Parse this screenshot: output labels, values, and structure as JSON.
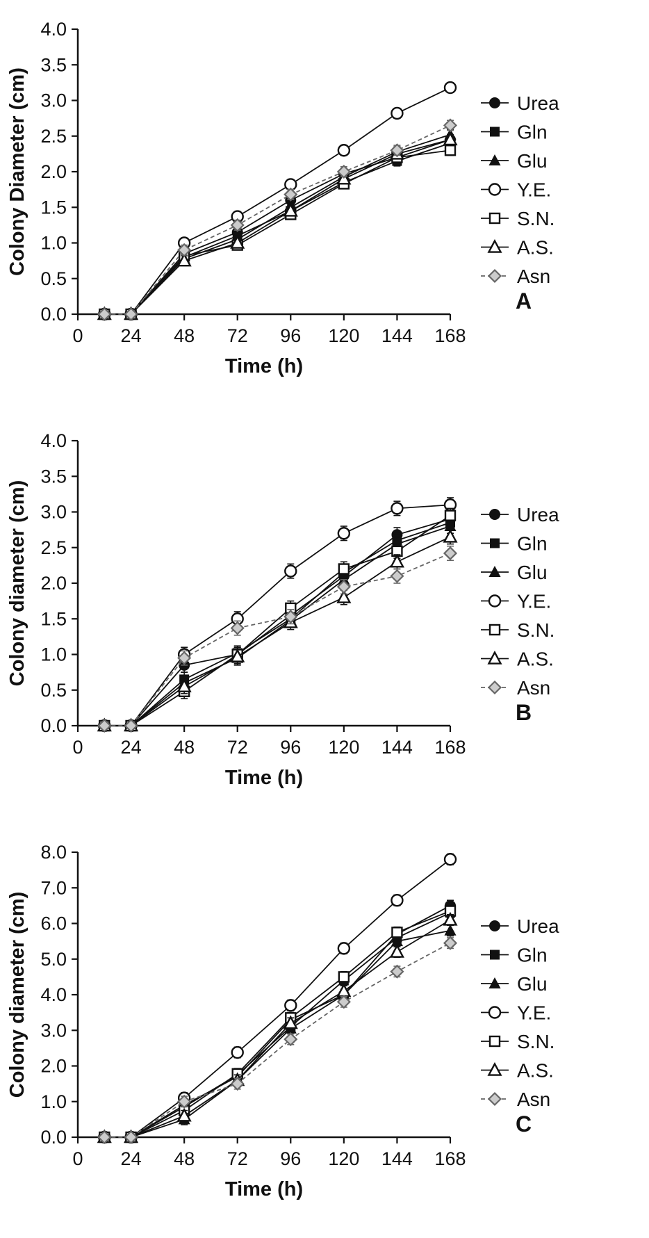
{
  "figure_title": "",
  "legend": {
    "entries": [
      "Urea",
      "Gln",
      "Glu",
      "Y.E.",
      "S.N.",
      "A.S.",
      "Asn"
    ]
  },
  "colors": {
    "series_black": "#111111",
    "asn_gray": "#666666",
    "asn_fill": "#cccccc",
    "background": "#ffffff"
  },
  "chart_data": [
    {
      "type": "line",
      "panel": "A",
      "title": "",
      "xlabel": "Time (h)",
      "ylabel": "Colony Diameter (cm)",
      "x": [
        12,
        24,
        48,
        72,
        96,
        120,
        144,
        168
      ],
      "xticks": [
        0,
        24,
        48,
        72,
        96,
        120,
        144,
        168
      ],
      "xlim": [
        0,
        168
      ],
      "ylim": [
        0,
        4.0
      ],
      "ytick_step": 0.5,
      "error": 0.07,
      "legend_position": "right",
      "grid": false,
      "series": [
        {
          "name": "Urea",
          "marker": "circle-filled",
          "dashed": false,
          "values": [
            0,
            0,
            0.85,
            1.15,
            1.6,
            1.97,
            2.2,
            2.45
          ]
        },
        {
          "name": "Gln",
          "marker": "square-filled",
          "dashed": false,
          "values": [
            0,
            0,
            0.8,
            1.1,
            1.45,
            1.85,
            2.15,
            2.4
          ]
        },
        {
          "name": "Glu",
          "marker": "triangle-filled",
          "dashed": false,
          "values": [
            0,
            0,
            0.78,
            1.05,
            1.5,
            1.93,
            2.28,
            2.52
          ]
        },
        {
          "name": "Y.E.",
          "marker": "circle-open",
          "dashed": false,
          "values": [
            0,
            0,
            1.0,
            1.37,
            1.82,
            2.3,
            2.82,
            3.18
          ]
        },
        {
          "name": "S.N.",
          "marker": "square-open",
          "dashed": false,
          "values": [
            0,
            0,
            0.82,
            0.97,
            1.4,
            1.83,
            2.2,
            2.3
          ]
        },
        {
          "name": "A.S.",
          "marker": "triangle-open",
          "dashed": false,
          "values": [
            0,
            0,
            0.75,
            1.0,
            1.45,
            1.9,
            2.25,
            2.45
          ]
        },
        {
          "name": "Asn",
          "marker": "diamond-open",
          "dashed": true,
          "values": [
            0,
            0,
            0.9,
            1.25,
            1.68,
            2.0,
            2.3,
            2.65
          ]
        }
      ]
    },
    {
      "type": "line",
      "panel": "B",
      "title": "",
      "xlabel": "Time (h)",
      "ylabel": "Colony diameter (cm)",
      "x": [
        12,
        24,
        48,
        72,
        96,
        120,
        144,
        168
      ],
      "xticks": [
        0,
        24,
        48,
        72,
        96,
        120,
        144,
        168
      ],
      "xlim": [
        0,
        168
      ],
      "ylim": [
        0,
        4.0
      ],
      "ytick_step": 0.5,
      "error": 0.1,
      "legend_position": "right",
      "grid": false,
      "series": [
        {
          "name": "Urea",
          "marker": "circle-filled",
          "dashed": false,
          "values": [
            0,
            0,
            0.85,
            1.0,
            1.55,
            2.1,
            2.68,
            2.9
          ]
        },
        {
          "name": "Gln",
          "marker": "square-filled",
          "dashed": false,
          "values": [
            0,
            0,
            0.65,
            1.02,
            1.5,
            2.15,
            2.6,
            2.85
          ]
        },
        {
          "name": "Glu",
          "marker": "triangle-filled",
          "dashed": false,
          "values": [
            0,
            0,
            0.6,
            0.95,
            1.48,
            2.05,
            2.55,
            2.8
          ]
        },
        {
          "name": "Y.E.",
          "marker": "circle-open",
          "dashed": false,
          "values": [
            0,
            0,
            1.0,
            1.5,
            2.17,
            2.7,
            3.05,
            3.1
          ]
        },
        {
          "name": "S.N.",
          "marker": "square-open",
          "dashed": false,
          "values": [
            0,
            0,
            0.48,
            1.0,
            1.65,
            2.2,
            2.45,
            2.95
          ]
        },
        {
          "name": "A.S.",
          "marker": "triangle-open",
          "dashed": false,
          "values": [
            0,
            0,
            0.55,
            0.97,
            1.45,
            1.8,
            2.3,
            2.65
          ]
        },
        {
          "name": "Asn",
          "marker": "diamond-open",
          "dashed": true,
          "values": [
            0,
            0,
            0.95,
            1.37,
            1.53,
            1.95,
            2.1,
            2.42
          ]
        }
      ]
    },
    {
      "type": "line",
      "panel": "C",
      "title": "",
      "xlabel": "Time (h)",
      "ylabel": "Colony diameter (cm)",
      "x": [
        12,
        24,
        48,
        72,
        96,
        120,
        144,
        168
      ],
      "xticks": [
        0,
        24,
        48,
        72,
        96,
        120,
        144,
        168
      ],
      "xlim": [
        0,
        168
      ],
      "ylim": [
        0,
        8.0
      ],
      "ytick_step": 1.0,
      "error": 0.15,
      "legend_position": "right",
      "grid": false,
      "series": [
        {
          "name": "Urea",
          "marker": "circle-filled",
          "dashed": false,
          "values": [
            0,
            0,
            0.9,
            1.7,
            3.3,
            4.0,
            5.7,
            6.5
          ]
        },
        {
          "name": "Gln",
          "marker": "square-filled",
          "dashed": false,
          "values": [
            0,
            0,
            0.85,
            1.75,
            3.1,
            4.4,
            5.6,
            6.3
          ]
        },
        {
          "name": "Glu",
          "marker": "triangle-filled",
          "dashed": false,
          "values": [
            0,
            0,
            0.5,
            1.6,
            3.05,
            4.0,
            5.5,
            5.8
          ]
        },
        {
          "name": "Y.E.",
          "marker": "circle-open",
          "dashed": false,
          "values": [
            0,
            0,
            1.1,
            2.38,
            3.7,
            5.3,
            6.65,
            7.8
          ]
        },
        {
          "name": "S.N.",
          "marker": "square-open",
          "dashed": false,
          "values": [
            0,
            0,
            0.75,
            1.78,
            3.35,
            4.5,
            5.75,
            6.35
          ]
        },
        {
          "name": "A.S.",
          "marker": "triangle-open",
          "dashed": false,
          "values": [
            0,
            0,
            0.6,
            1.6,
            3.2,
            4.1,
            5.2,
            6.1
          ]
        },
        {
          "name": "Asn",
          "marker": "diamond-open",
          "dashed": true,
          "values": [
            0,
            0,
            1.0,
            1.5,
            2.75,
            3.8,
            4.65,
            5.45
          ]
        }
      ]
    }
  ]
}
